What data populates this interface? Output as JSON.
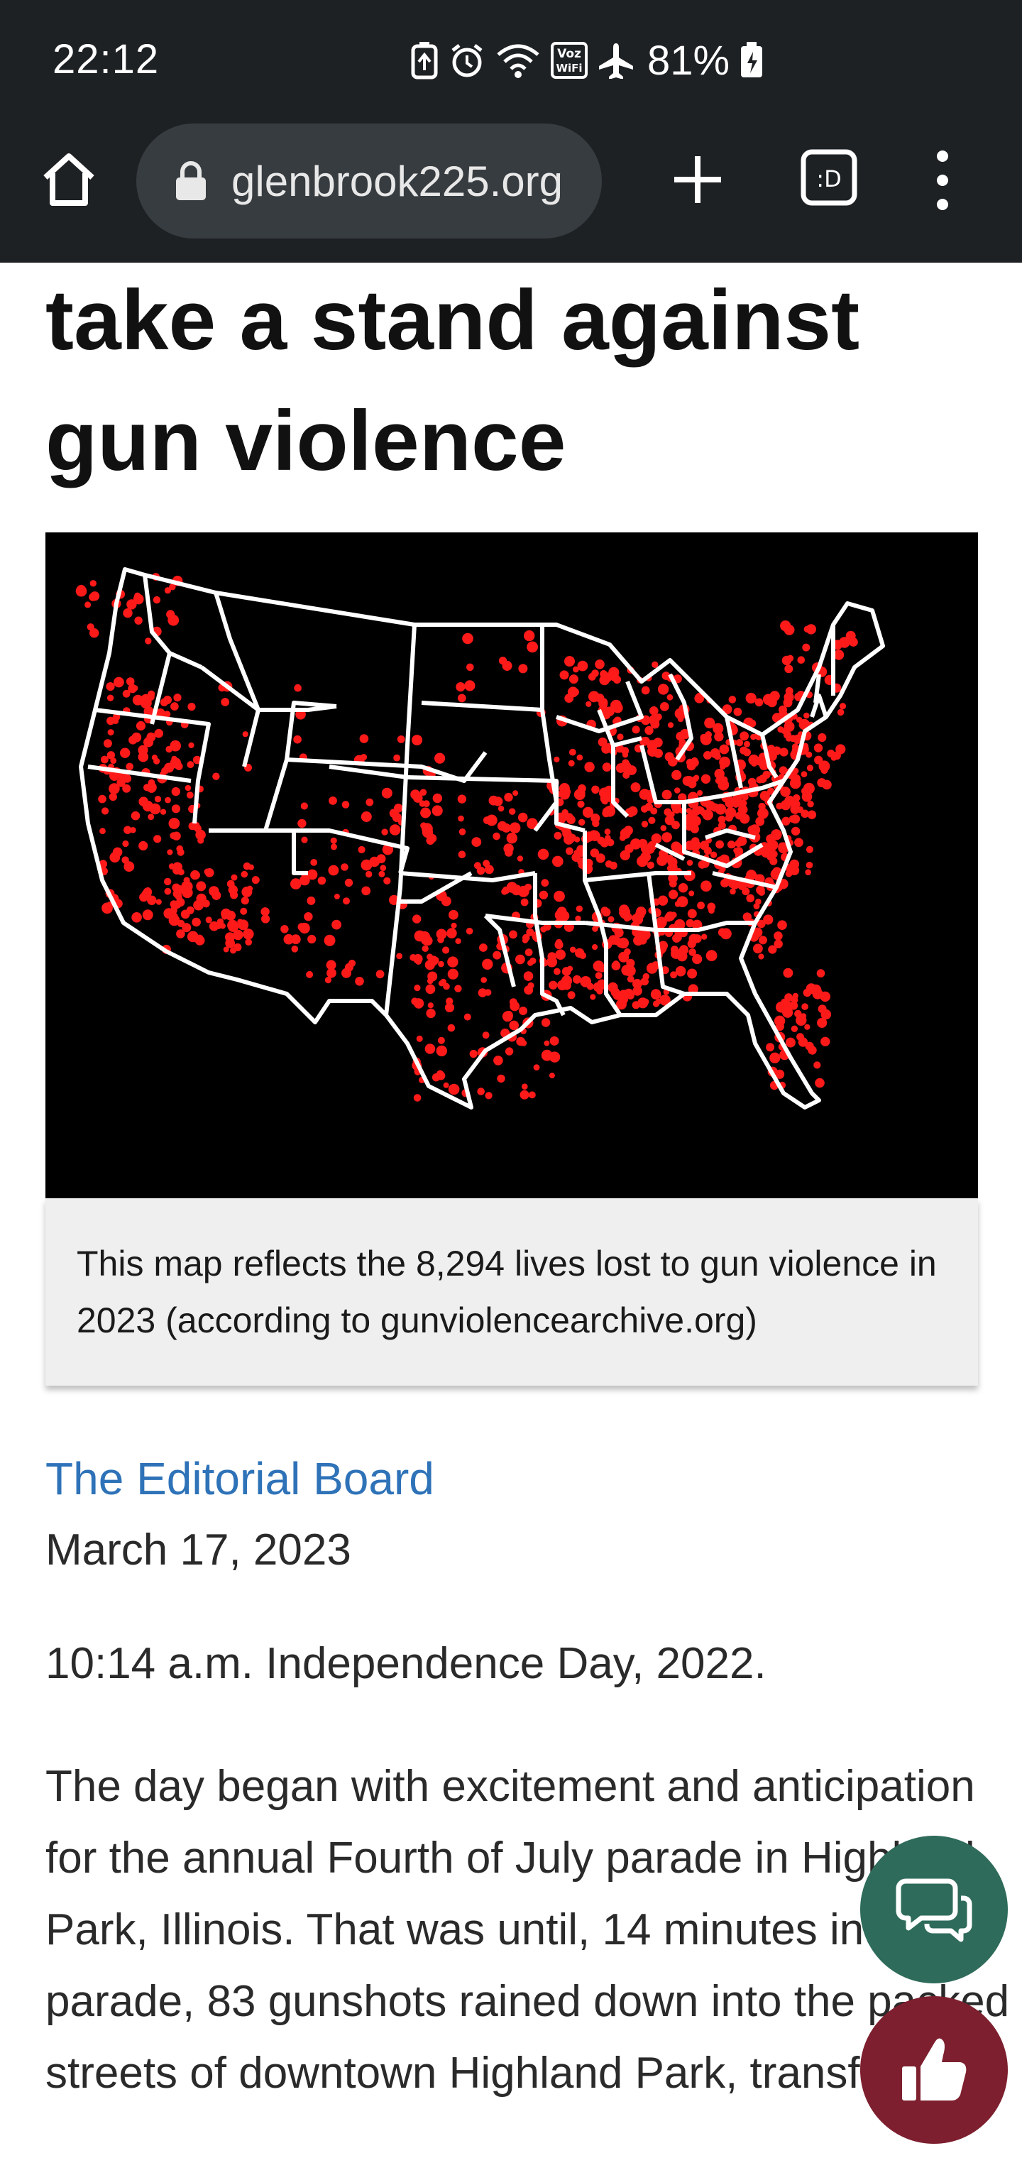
{
  "status_bar": {
    "time": "22:12",
    "battery": "81%",
    "icons": [
      "battery-saver-icon",
      "alarm-icon",
      "wifi-icon",
      "vowifi-icon",
      "airplane-icon",
      "battery-charging-icon"
    ]
  },
  "browser": {
    "url": "glenbrook225.org",
    "icons": [
      "home-icon",
      "lock-icon",
      "plus-icon",
      "tab-switcher-icon",
      "more-vert-icon"
    ]
  },
  "article": {
    "headline": "take a stand against gun violence",
    "figure_caption": "This map reflects the 8,294 lives lost to gun violence in 2023 (according to gunviolencearchive.org)",
    "author": "The Editorial Board",
    "date": "March 17, 2023",
    "paragraphs": [
      "10:14 a.m. Independence Day, 2022.",
      "The day began with excitement and anticipation for the annual Fourth of July parade in Highland Park, Illinois. That was until, 14 minutes into the parade, 83 gunshots rained down into the packed streets of downtown Highland Park, transforming"
    ]
  },
  "colors": {
    "chrome_background": "#1e2124",
    "url_pill": "#373c40",
    "map_background": "#000000",
    "map_dots": "#ff1a1a",
    "map_borders": "#ffffff",
    "caption_background": "#efefef",
    "author_link": "#2e72b8",
    "chat_fab": "#2e6b5a",
    "like_fab": "#7d1f2e"
  },
  "floating_buttons": [
    "chat-icon",
    "thumbs-up-icon"
  ]
}
